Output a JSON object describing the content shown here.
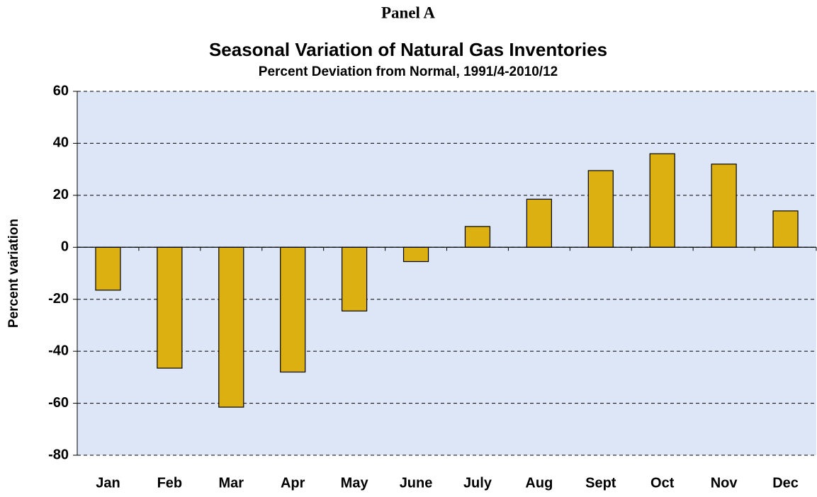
{
  "chart_data": {
    "type": "bar",
    "panel_title": "Panel A",
    "title": "Seasonal Variation of Natural Gas Inventories",
    "subtitle": "Percent Deviation from Normal, 1991/4-2010/12",
    "y_label": "Percent variation",
    "categories": [
      "Jan",
      "Feb",
      "Mar",
      "Apr",
      "May",
      "June",
      "July",
      "Aug",
      "Sept",
      "Oct",
      "Nov",
      "Dec"
    ],
    "values": [
      -16.5,
      -46.5,
      -61.5,
      -48,
      -24.5,
      -5.5,
      8,
      18.5,
      29.5,
      36,
      32,
      14
    ],
    "color": "#ddb012",
    "ylim": [
      -80,
      60
    ],
    "yticks": [
      -80,
      -60,
      -40,
      -20,
      0,
      20,
      40,
      60
    ],
    "grid": true
  }
}
